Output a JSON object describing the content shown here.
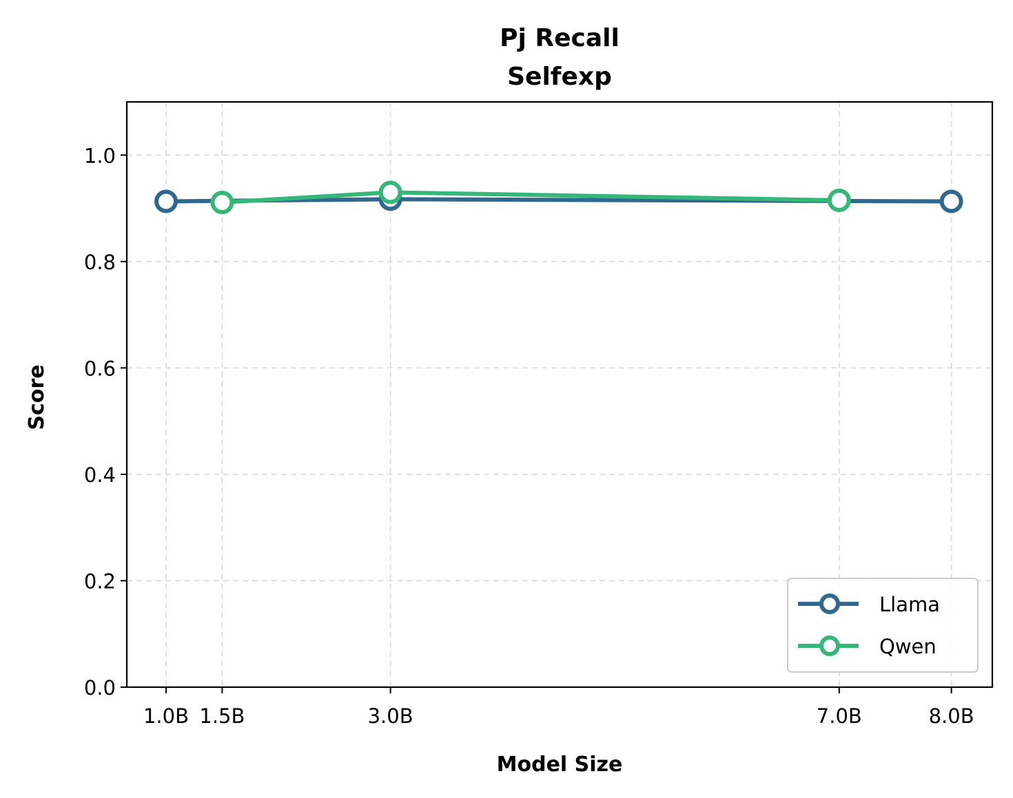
{
  "chart_data": {
    "type": "line",
    "title": [
      "Pj Recall",
      "Selfexp"
    ],
    "xlabel": "Model Size",
    "ylabel": "Score",
    "ylim": [
      0,
      1.1
    ],
    "yticks": [
      0.0,
      0.2,
      0.4,
      0.6,
      0.8,
      1.0
    ],
    "ytick_labels": [
      "0.0",
      "0.2",
      "0.4",
      "0.6",
      "0.8",
      "1.0"
    ],
    "xticks": [
      1.0,
      1.5,
      3.0,
      7.0,
      8.0
    ],
    "xtick_labels": [
      "1.0B",
      "1.5B",
      "3.0B",
      "7.0B",
      "8.0B"
    ],
    "grid": true,
    "legend_position": "lower-right",
    "series": [
      {
        "name": "Llama",
        "color": "#31688e",
        "x": [
          1.0,
          3.0,
          8.0
        ],
        "y": [
          0.913,
          0.917,
          0.913
        ]
      },
      {
        "name": "Qwen",
        "color": "#35b779",
        "x": [
          1.5,
          3.0,
          7.0
        ],
        "y": [
          0.911,
          0.93,
          0.915
        ]
      }
    ]
  }
}
